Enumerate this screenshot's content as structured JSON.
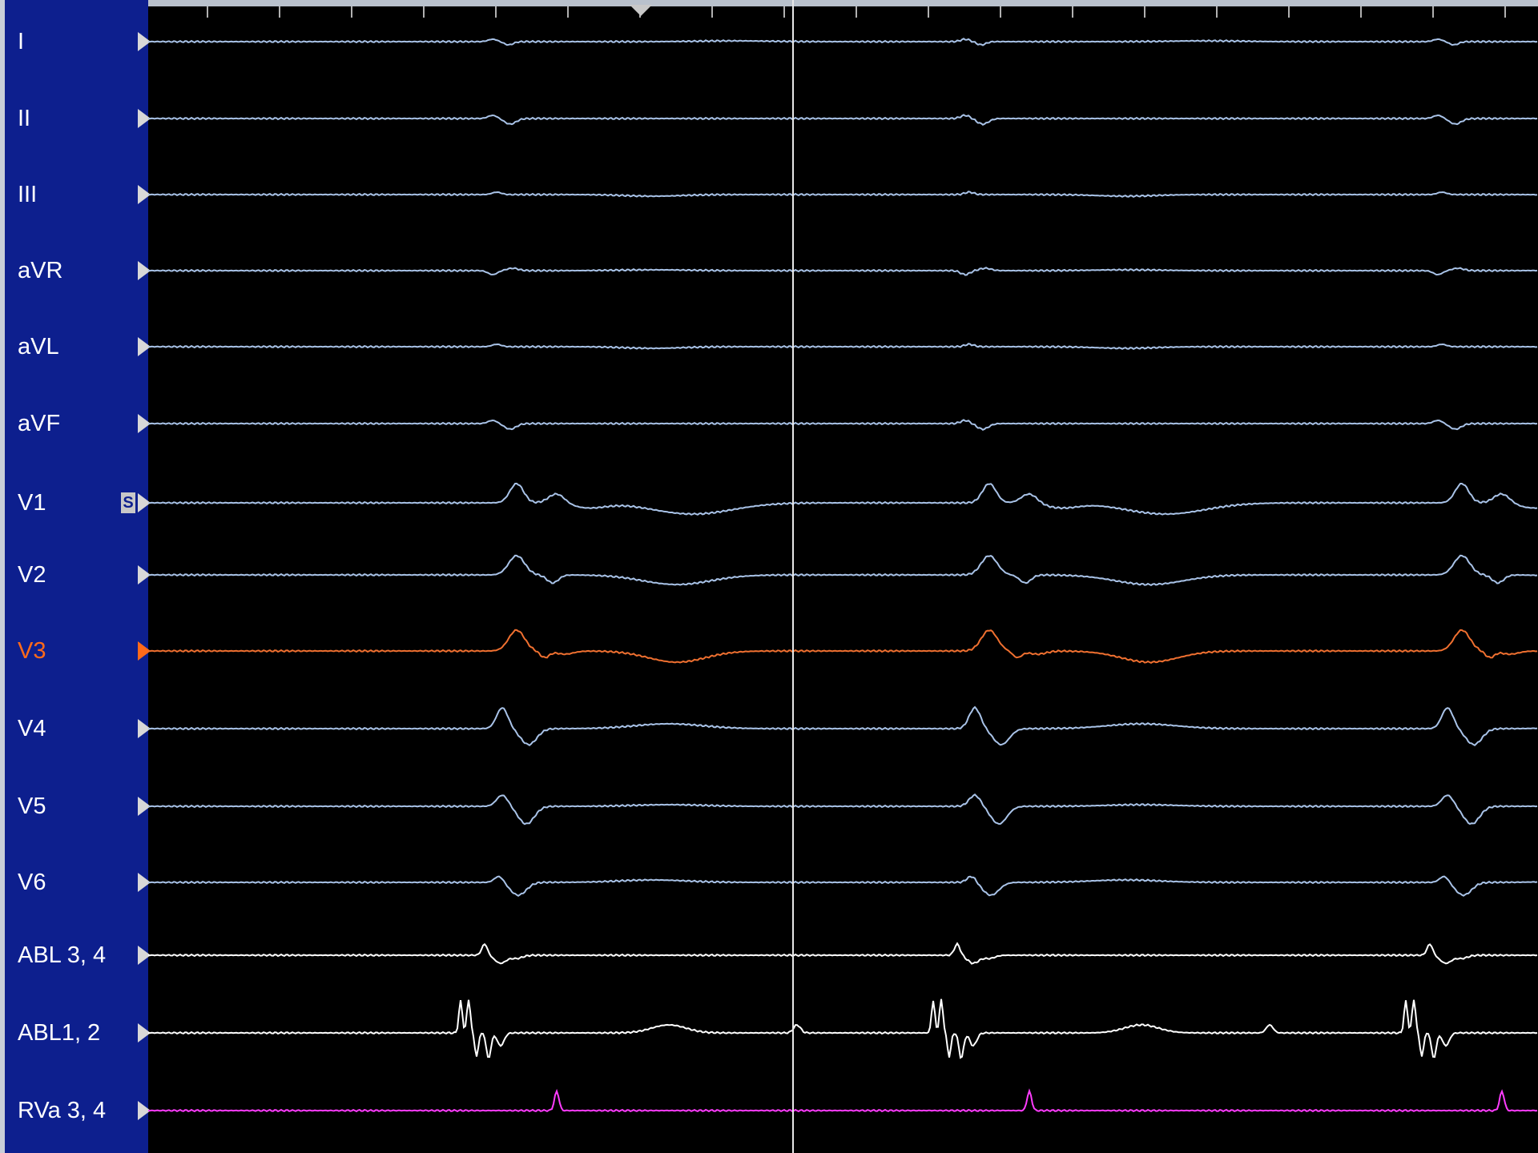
{
  "channels": [
    {
      "label": "I",
      "color": "#a9c3e8",
      "labelColor": "#ffffff",
      "marker": "#d8d8d8",
      "baseline": 52,
      "shape": "qrs_small_lead_I"
    },
    {
      "label": "II",
      "color": "#a9c3e8",
      "labelColor": "#ffffff",
      "marker": "#d8d8d8",
      "baseline": 148,
      "shape": "qrs_neg_small"
    },
    {
      "label": "III",
      "color": "#a9c3e8",
      "labelColor": "#ffffff",
      "marker": "#d8d8d8",
      "baseline": 243,
      "shape": "flat_small"
    },
    {
      "label": "aVR",
      "color": "#a9c3e8",
      "labelColor": "#ffffff",
      "marker": "#d8d8d8",
      "baseline": 338,
      "shape": "qrs_pos_small"
    },
    {
      "label": "aVL",
      "color": "#a9c3e8",
      "labelColor": "#ffffff",
      "marker": "#d8d8d8",
      "baseline": 433,
      "shape": "flat_small"
    },
    {
      "label": "aVF",
      "color": "#a9c3e8",
      "labelColor": "#ffffff",
      "marker": "#d8d8d8",
      "baseline": 529,
      "shape": "qrs_neg_small"
    },
    {
      "label": "V1",
      "color": "#a9c3e8",
      "labelColor": "#ffffff",
      "marker": "#d8d8d8",
      "baseline": 628,
      "shape": "v1",
      "badge": "S"
    },
    {
      "label": "V2",
      "color": "#a9c3e8",
      "labelColor": "#ffffff",
      "marker": "#d8d8d8",
      "baseline": 718,
      "shape": "v2"
    },
    {
      "label": "V3",
      "color": "#f07030",
      "labelColor": "#ff6a1a",
      "marker": "#ff6a1a",
      "baseline": 813,
      "shape": "v3"
    },
    {
      "label": "V4",
      "color": "#a9c3e8",
      "labelColor": "#ffffff",
      "marker": "#d8d8d8",
      "baseline": 910,
      "shape": "v4"
    },
    {
      "label": "V5",
      "color": "#a9c3e8",
      "labelColor": "#ffffff",
      "marker": "#d8d8d8",
      "baseline": 1007,
      "shape": "v5"
    },
    {
      "label": "V6",
      "color": "#a9c3e8",
      "labelColor": "#ffffff",
      "marker": "#d8d8d8",
      "baseline": 1102,
      "shape": "v6"
    },
    {
      "label": "ABL 3, 4",
      "color": "#ffffff",
      "labelColor": "#ffffff",
      "marker": "#d8d8d8",
      "baseline": 1193,
      "shape": "abl34"
    },
    {
      "label": "ABL1, 2",
      "color": "#ffffff",
      "labelColor": "#ffffff",
      "marker": "#d8d8d8",
      "baseline": 1290,
      "shape": "abl12"
    },
    {
      "label": "RVa 3, 4",
      "color": "#ff3cff",
      "labelColor": "#ffffff",
      "marker": "#d8d8d8",
      "baseline": 1387,
      "shape": "rva"
    }
  ]
}
